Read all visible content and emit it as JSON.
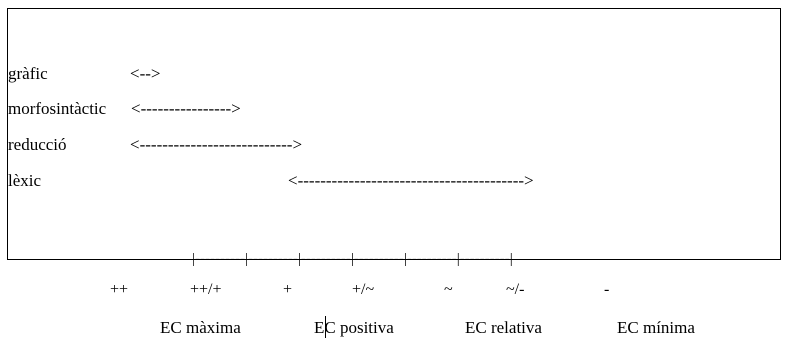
{
  "rows": [
    {
      "label": "gràfic",
      "range": "<-->"
    },
    {
      "label": "morfosintàctic",
      "range": "<---------------->"
    },
    {
      "label": "reducció",
      "range": "<--------------------------->"
    },
    {
      "label": "lèxic",
      "range": "<---------------------------------------->"
    }
  ],
  "scale": "|----------|----------|----------|----------|----------|----------|",
  "symbols": [
    "++",
    "++/+",
    "+",
    "+/~",
    "~",
    "~/-",
    "-"
  ],
  "categories": [
    "EC màxima",
    "EC positiva",
    "EC relativa",
    "EC mínima"
  ]
}
